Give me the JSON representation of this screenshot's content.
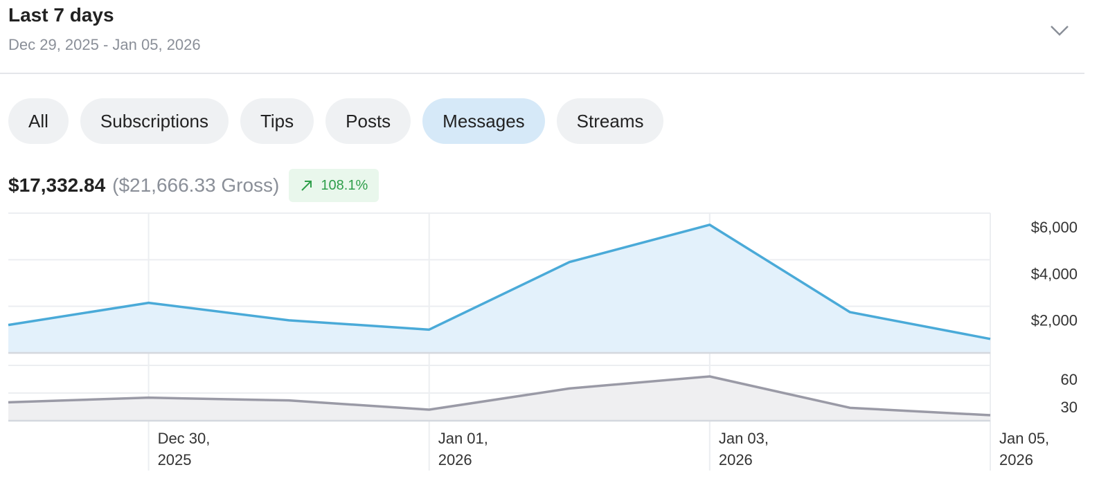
{
  "header": {
    "title": "Last 7 days",
    "subtitle": "Dec 29, 2025 - Jan 05, 2026"
  },
  "tabs": [
    "All",
    "Subscriptions",
    "Tips",
    "Posts",
    "Messages",
    "Streams"
  ],
  "active_tab": 4,
  "summary": {
    "net": "$17,332.84",
    "gross": "($21,666.33 Gross)",
    "change": "108.1%"
  },
  "chart_data": [
    {
      "type": "area",
      "categories": [
        null,
        "Dec 30, 2025",
        null,
        "Jan 01, 2026",
        null,
        "Jan 03, 2026",
        null,
        "Jan 05, 2026"
      ],
      "series": [
        {
          "color": "#4aaad8",
          "fill": "#e3f1fb",
          "values": [
            1200,
            2150,
            1400,
            1000,
            3900,
            5500,
            1750,
            600
          ]
        }
      ],
      "ylim": [
        0,
        6000
      ],
      "yticks": [
        {
          "value": 2000,
          "label": "$2,000"
        },
        {
          "value": 4000,
          "label": "$4,000"
        },
        {
          "value": 6000,
          "label": "$6,000"
        }
      ],
      "grid": true
    },
    {
      "type": "area",
      "series": [
        {
          "color": "#9a9aa6",
          "fill": "#efeff1",
          "values": [
            20,
            25,
            22,
            12,
            35,
            48,
            14,
            6
          ]
        }
      ],
      "ylim": [
        0,
        60
      ],
      "yticks": [
        30,
        60
      ],
      "grid": true
    }
  ]
}
